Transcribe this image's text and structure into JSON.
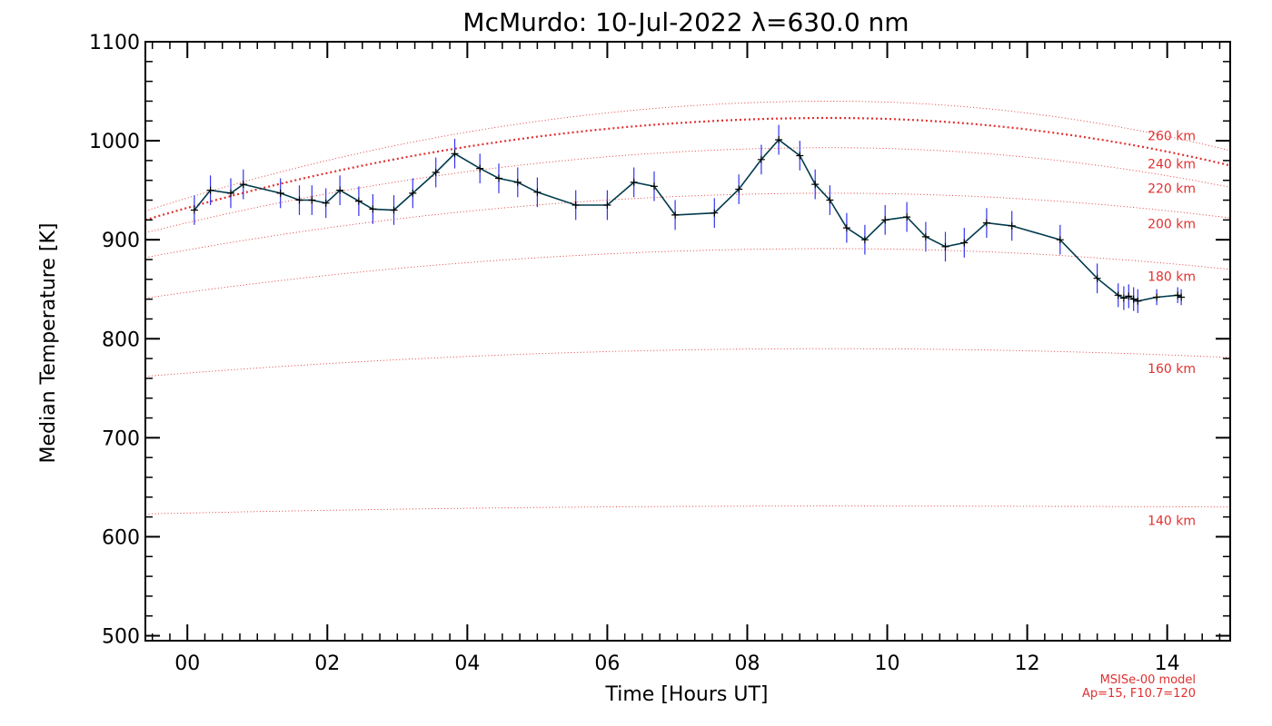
{
  "chart_data": {
    "type": "line",
    "title": "McMurdo: 10-Jul-2022 λ=630.0 nm",
    "xlabel": "Time [Hours UT]",
    "ylabel": "Median Temperature [K]",
    "xlim": [
      -0.6,
      14.9
    ],
    "ylim": [
      495,
      1100
    ],
    "x_ticks": [
      0,
      2,
      4,
      6,
      8,
      10,
      12,
      14
    ],
    "x_tick_labels": [
      "00",
      "02",
      "04",
      "06",
      "08",
      "10",
      "12",
      "14"
    ],
    "y_ticks": [
      500,
      600,
      700,
      800,
      900,
      1000,
      1100
    ],
    "y_tick_labels": [
      "500",
      "600",
      "700",
      "800",
      "900",
      "1000",
      "1100"
    ],
    "colors": {
      "measurement_line": "#003a4d",
      "error_bar": "#3333ee",
      "model": "#e03030",
      "axis": "#000000"
    },
    "measurements": {
      "name": "Median temperature",
      "x": [
        0.1,
        0.33,
        0.62,
        0.8,
        1.33,
        1.6,
        1.78,
        1.98,
        2.18,
        2.45,
        2.65,
        2.95,
        3.22,
        3.55,
        3.82,
        4.18,
        4.45,
        4.72,
        5.0,
        5.55,
        6.0,
        6.38,
        6.67,
        6.97,
        7.53,
        7.88,
        8.2,
        8.45,
        8.75,
        8.97,
        9.18,
        9.42,
        9.68,
        9.97,
        10.28,
        10.55,
        10.83,
        11.1,
        11.42,
        11.78,
        12.47,
        13.0,
        13.3,
        13.38,
        13.45,
        13.52,
        13.58,
        13.85,
        14.15,
        14.2
      ],
      "y": [
        930,
        950,
        947,
        956,
        947,
        940,
        940,
        937,
        950,
        939,
        931,
        930,
        947,
        968,
        987,
        972,
        962,
        958,
        948,
        935,
        935,
        958,
        954,
        925,
        927,
        951,
        981,
        1001,
        985,
        956,
        940,
        912,
        900,
        920,
        923,
        903,
        893,
        897,
        917,
        914,
        900,
        861,
        844,
        841,
        843,
        840,
        838,
        842,
        844,
        842
      ],
      "error": [
        15,
        15,
        15,
        15,
        15,
        15,
        15,
        15,
        15,
        15,
        15,
        15,
        15,
        15,
        15,
        15,
        15,
        15,
        15,
        15,
        15,
        15,
        15,
        15,
        15,
        15,
        15,
        15,
        15,
        15,
        15,
        15,
        15,
        15,
        15,
        15,
        15,
        15,
        15,
        15,
        15,
        15,
        12,
        12,
        12,
        12,
        12,
        8,
        8,
        8
      ]
    },
    "model_curves": [
      {
        "label": "140 km",
        "start": 623,
        "peak": 631,
        "end": 630,
        "bold": false
      },
      {
        "label": "160 km",
        "start": 762,
        "peak": 790,
        "end": 781,
        "bold": false
      },
      {
        "label": "180 km",
        "start": 841,
        "peak": 891,
        "end": 870,
        "bold": false
      },
      {
        "label": "200 km",
        "start": 882,
        "peak": 947,
        "end": 922,
        "bold": false
      },
      {
        "label": "220 km",
        "start": 907,
        "peak": 993,
        "end": 953,
        "bold": false
      },
      {
        "label": "240 km",
        "start": 920,
        "peak": 1023,
        "end": 975,
        "bold": true
      },
      {
        "label": "260 km",
        "start": 929,
        "peak": 1040,
        "end": 990,
        "bold": false
      }
    ],
    "model_peak_x": 9.2,
    "model_note": [
      "MSISe-00 model",
      "Ap=15, F10.7=120"
    ]
  }
}
